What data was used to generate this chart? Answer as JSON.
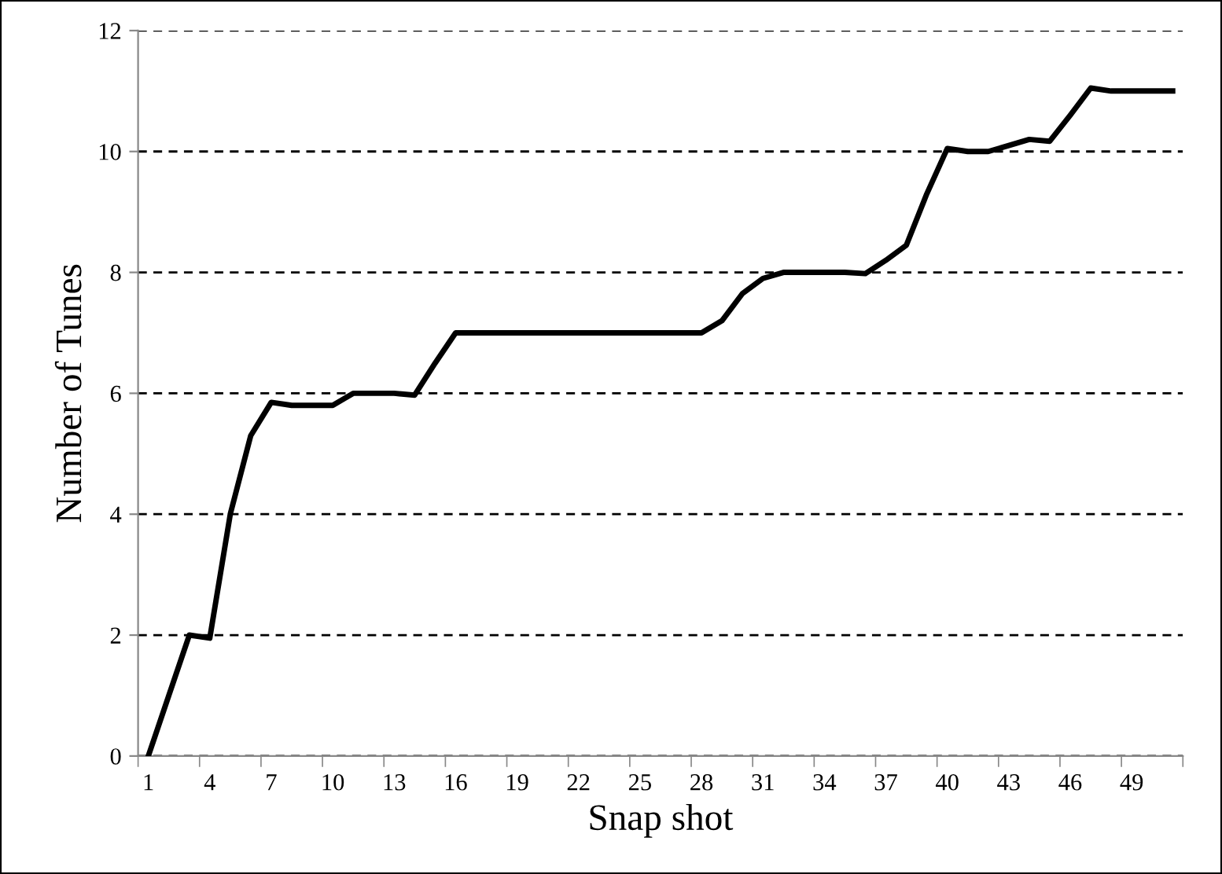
{
  "chart_data": {
    "type": "line",
    "xlabel": "Snap shot",
    "ylabel": "Number of Tunes",
    "categories": [
      "1",
      null,
      null,
      "4",
      null,
      null,
      "7",
      null,
      null,
      "10",
      null,
      null,
      "13",
      null,
      null,
      "16",
      null,
      null,
      "19",
      null,
      null,
      "22",
      null,
      null,
      "25",
      null,
      null,
      "28",
      null,
      null,
      "31",
      null,
      null,
      "34",
      null,
      null,
      "37",
      null,
      null,
      "40",
      null,
      null,
      "43",
      null,
      null,
      "46",
      null,
      null,
      "49",
      null,
      null
    ],
    "series": [
      {
        "color": "#000000",
        "values": [
          0,
          1.0,
          2.0,
          1.95,
          4.0,
          5.3,
          5.85,
          5.8,
          5.8,
          5.8,
          6.0,
          6.0,
          6.0,
          5.97,
          6.5,
          7.0,
          7.0,
          7.0,
          7.0,
          7.0,
          7.0,
          7.0,
          7.0,
          7.0,
          7.0,
          7.0,
          7.0,
          7.0,
          7.2,
          7.65,
          7.9,
          8.0,
          8.0,
          8.0,
          8.0,
          7.98,
          8.2,
          8.45,
          9.3,
          10.05,
          10.0,
          10.0,
          10.1,
          10.2,
          10.17,
          10.6,
          11.05,
          11.0,
          11.0,
          11.0,
          11.0
        ]
      }
    ],
    "ylim": [
      0,
      12
    ],
    "yticks": [
      0,
      2,
      4,
      6,
      8,
      10,
      12
    ],
    "grid": "y",
    "marker": "none",
    "line_style": "solid"
  }
}
